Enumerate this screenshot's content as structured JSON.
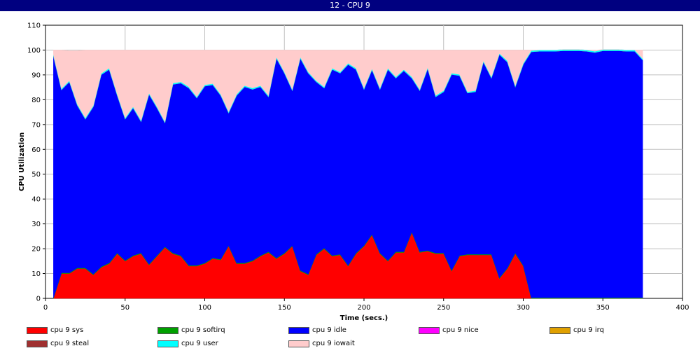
{
  "window": {
    "title": "12 - CPU 9"
  },
  "chart_data": {
    "type": "area",
    "stacked": true,
    "title": "12 - CPU 9",
    "xlabel": "Time (secs.)",
    "ylabel": "CPU Utilization",
    "xlim": [
      0,
      400
    ],
    "ylim": [
      0,
      110
    ],
    "xticks": [
      0,
      50,
      100,
      150,
      200,
      250,
      300,
      350,
      400
    ],
    "yticks": [
      0,
      10,
      20,
      30,
      40,
      50,
      60,
      70,
      80,
      90,
      100,
      110
    ],
    "grid": true,
    "legend_position": "bottom",
    "x": [
      5,
      10,
      15,
      20,
      25,
      30,
      35,
      40,
      45,
      50,
      55,
      60,
      65,
      70,
      75,
      80,
      85,
      90,
      95,
      100,
      105,
      110,
      115,
      120,
      125,
      130,
      135,
      140,
      145,
      150,
      155,
      160,
      165,
      170,
      175,
      180,
      185,
      190,
      195,
      200,
      205,
      210,
      215,
      220,
      225,
      230,
      235,
      240,
      245,
      250,
      255,
      260,
      265,
      270,
      275,
      280,
      285,
      290,
      295,
      300,
      305,
      310,
      315,
      320,
      325,
      330,
      335,
      340,
      345,
      350,
      355,
      360,
      365,
      370,
      375
    ],
    "series": [
      {
        "name": "cpu 9 sys",
        "color": "#ff0000",
        "values": [
          0,
          10,
          10,
          12,
          12,
          9.5,
          12.5,
          14,
          18,
          15,
          17,
          18,
          13.5,
          17,
          20.5,
          18,
          17,
          13,
          13,
          14,
          16,
          15.5,
          21,
          14,
          14,
          15,
          17,
          18.5,
          16,
          18,
          21,
          11,
          9.5,
          17.5,
          20,
          17,
          17.5,
          13,
          18,
          21,
          25.5,
          18,
          15,
          18.5,
          18.5,
          26.5,
          18.5,
          19,
          18,
          18,
          11,
          17,
          17.5,
          17.5,
          17.5,
          17.5,
          8,
          12,
          18,
          13,
          0,
          0,
          0,
          0,
          0,
          0,
          0,
          0,
          0,
          0,
          0,
          0,
          0,
          0,
          0
        ]
      },
      {
        "name": "cpu 9 softirq",
        "color": "#00a000",
        "values": [
          0.3,
          0.3,
          0.3,
          0.3,
          0.3,
          0.3,
          0.3,
          0.3,
          0.3,
          0.3,
          0.3,
          0.3,
          0.3,
          0.3,
          0.3,
          0.3,
          0.3,
          0.3,
          0.3,
          0.3,
          0.3,
          0.3,
          0.3,
          0.3,
          0.3,
          0.3,
          0.3,
          0.3,
          0.3,
          0.3,
          0.3,
          0.3,
          0.3,
          0.3,
          0.3,
          0.3,
          0.3,
          0.3,
          0.3,
          0.3,
          0.3,
          0.3,
          0.3,
          0.3,
          0.3,
          0.3,
          0.3,
          0.3,
          0.3,
          0.3,
          0.3,
          0.3,
          0.3,
          0.3,
          0.3,
          0.3,
          0.3,
          0.3,
          0.3,
          0.3,
          0.3,
          0.3,
          0.3,
          0.3,
          0.3,
          0.3,
          0.3,
          0.3,
          0.3,
          0.3,
          0.3,
          0.3,
          0.3,
          0.3,
          0.3
        ]
      },
      {
        "name": "cpu 9 idle",
        "color": "#0000ff",
        "values": [
          97.2,
          73.7,
          76.9,
          65.4,
          59.9,
          67.4,
          77.3,
          77.9,
          63.5,
          56.9,
          59.4,
          52.9,
          68.4,
          59.4,
          49.9,
          67.9,
          69.4,
          71.4,
          67.4,
          71.2,
          69.7,
          65.9,
          53.4,
          67.4,
          70.9,
          68.9,
          67.9,
          62.4,
          80.4,
          72.4,
          62.4,
          85.4,
          80.9,
          69.4,
          64.4,
          74.9,
          72.9,
          80.9,
          73.9,
          62.9,
          66.2,
          65.9,
          76.9,
          69.9,
          72.9,
          61.9,
          64.9,
          73.2,
          62.9,
          64.9,
          78.9,
          72.4,
          64.9,
          65.4,
          77.4,
          70.9,
          89.9,
          82.9,
          66.9,
          80.9,
          99.0,
          99.2,
          99.2,
          99.2,
          99.4,
          99.4,
          99.4,
          99.2,
          98.7,
          99.4,
          99.4,
          99.4,
          99.2,
          99.2,
          95.7
        ]
      },
      {
        "name": "cpu 9 nice",
        "color": "#ff00ff",
        "values": [
          0,
          0,
          0,
          0,
          0,
          0,
          0,
          0,
          0,
          0,
          0,
          0,
          0,
          0,
          0,
          0,
          0,
          0,
          0,
          0,
          0,
          0,
          0,
          0,
          0,
          0,
          0,
          0,
          0,
          0,
          0,
          0,
          0,
          0,
          0,
          0,
          0,
          0,
          0,
          0,
          0,
          0,
          0,
          0,
          0,
          0,
          0,
          0,
          0,
          0,
          0,
          0,
          0,
          0,
          0,
          0,
          0,
          0,
          0,
          0,
          0,
          0,
          0,
          0,
          0,
          0,
          0,
          0,
          0,
          0,
          0,
          0,
          0,
          0,
          0
        ]
      },
      {
        "name": "cpu 9 irq",
        "color": "#e0a000",
        "values": [
          0,
          0,
          0,
          0,
          0,
          0,
          0,
          0,
          0,
          0,
          0,
          0,
          0,
          0,
          0,
          0,
          0,
          0,
          0,
          0,
          0,
          0,
          0,
          0,
          0,
          0,
          0,
          0,
          0,
          0,
          0,
          0,
          0,
          0,
          0,
          0,
          0,
          0,
          0,
          0,
          0,
          0,
          0,
          0,
          0,
          0,
          0,
          0,
          0,
          0,
          0,
          0,
          0,
          0,
          0,
          0,
          0,
          0,
          0,
          0,
          0,
          0,
          0,
          0,
          0,
          0,
          0,
          0,
          0,
          0,
          0,
          0,
          0,
          0,
          0
        ]
      },
      {
        "name": "cpu 9 steal",
        "color": "#a03030",
        "values": [
          0,
          0,
          0,
          0,
          0,
          0,
          0,
          0,
          0,
          0,
          0,
          0,
          0,
          0,
          0,
          0,
          0,
          0,
          0,
          0,
          0,
          0,
          0,
          0,
          0,
          0,
          0,
          0,
          0,
          0,
          0,
          0,
          0,
          0,
          0,
          0,
          0,
          0,
          0,
          0,
          0,
          0,
          0,
          0,
          0,
          0,
          0,
          0,
          0,
          0,
          0,
          0,
          0,
          0,
          0,
          0,
          0,
          0,
          0,
          0,
          0,
          0,
          0,
          0,
          0,
          0,
          0,
          0,
          0,
          0,
          0,
          0,
          0,
          0,
          0
        ]
      },
      {
        "name": "cpu 9 user",
        "color": "#00ffff",
        "values": [
          0.5,
          0.5,
          0.5,
          0.5,
          0.5,
          0.5,
          0.5,
          0.5,
          0.5,
          0.5,
          0.5,
          0.5,
          0.5,
          0.5,
          0.5,
          0.5,
          0.5,
          0.5,
          0.5,
          0.5,
          0.5,
          0.5,
          0.5,
          0.5,
          0.5,
          0.5,
          0.5,
          0.5,
          0.5,
          0.5,
          0.5,
          0.5,
          0.5,
          0.5,
          0.5,
          0.5,
          0.5,
          0.5,
          0.5,
          0.5,
          0.5,
          0.5,
          0.5,
          0.5,
          0.5,
          0.5,
          0.5,
          0.5,
          0.5,
          0.5,
          0.5,
          0.5,
          0.5,
          0.5,
          0.5,
          0.5,
          0.5,
          0.5,
          0.5,
          0.5,
          0.5,
          0.5,
          0.5,
          0.5,
          0.5,
          0.5,
          0.5,
          0.5,
          0.5,
          0.5,
          0.5,
          0.5,
          0.5,
          0.5,
          0.5
        ]
      },
      {
        "name": "cpu 9 iowait",
        "color": "#ffcccc",
        "values": [
          2,
          15.5,
          12,
          21.5,
          27.3,
          22.3,
          9.4,
          7.3,
          17.7,
          27.3,
          22.8,
          28.3,
          17.3,
          22.8,
          28.8,
          13.3,
          12.8,
          14.8,
          18.8,
          14.0,
          13.5,
          17.8,
          24.8,
          17.8,
          14.3,
          15.3,
          14.3,
          18.3,
          2.8,
          8.8,
          15.8,
          2.8,
          8.8,
          12.3,
          14.8,
          7.3,
          8.8,
          5.3,
          7.3,
          15.3,
          7.5,
          15.3,
          7.3,
          10.8,
          7.8,
          10.8,
          15.8,
          7.0,
          18.3,
          16.3,
          9.3,
          9.8,
          16.8,
          16.3,
          4.3,
          10.8,
          1.3,
          4.3,
          14.3,
          5.3,
          0.2,
          0,
          0,
          0,
          0,
          0,
          0,
          0,
          0.5,
          0,
          0,
          0,
          0,
          0,
          3.5
        ]
      }
    ]
  }
}
